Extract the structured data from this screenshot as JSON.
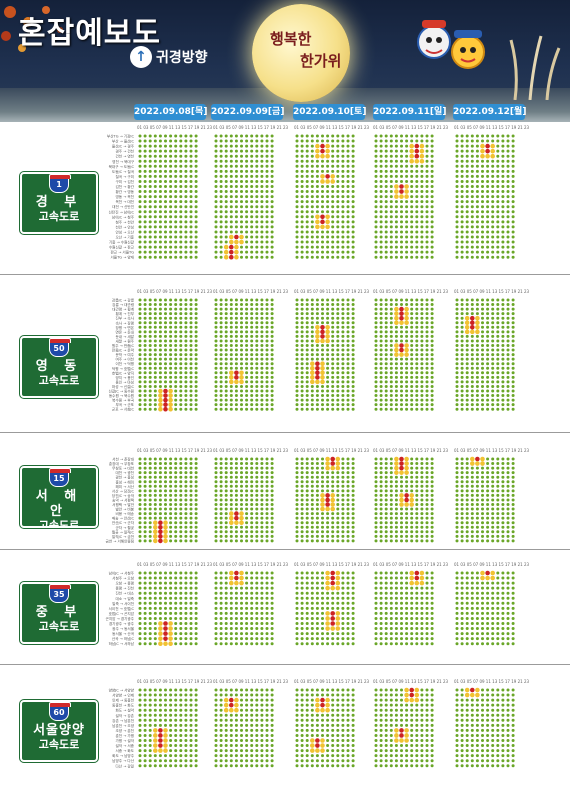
{
  "header": {
    "title": "혼잡예보도",
    "logo_text": "귀경방향",
    "greeting_line1": "행복한",
    "greeting_line2": "한가위"
  },
  "dates": [
    "2022.09.08[목]",
    "2022.09.09[금]",
    "2022.09.10[토]",
    "2022.09.11[일]",
    "2022.09.12[월]"
  ],
  "hour_axis_label": "01 03 05 07 09 11 13 15 17 19 21 23",
  "legend_colors": {
    "smooth": "#6aa628",
    "slow": "#f1c232",
    "congested": "#cc2222"
  },
  "highways": [
    {
      "route_number": "1",
      "name_line1": "경 부",
      "name_line2": "고속도로",
      "sections": [
        "부산TG → 기장IC",
        "부산 → 울산JC",
        "울산JC → 경주",
        "경주 → 건천",
        "건천 → 영천",
        "영천 → 북대구",
        "북대구 → 도동JC",
        "도동JC → 칠곡",
        "칠곡 → 구미",
        "구미 → 김천",
        "김천 → 황간",
        "황간 → 영동",
        "영동 → 옥천",
        "옥천 → 대전",
        "대전 → 신탄진",
        "신탄진 → 남이JC",
        "남이JC → 청주",
        "청주 → 천안",
        "천안 → 안성",
        "안성 → 오산",
        "오산 → 기흥",
        "기흥 → 수원신갈",
        "수원신갈 → 판교",
        "판교 → 서울TG",
        "서울TG → 양재"
      ],
      "grid": [
        "000000000000",
        "000000000000",
        "000000000000",
        "000000000000",
        "000000000000",
        "000000000000",
        "000000000000",
        "000000000000",
        "000000000000",
        "000000000000",
        "000000000000",
        "000000000000",
        "000000000000",
        "000000000000",
        "000000000000",
        "000000000000",
        "000000000000",
        "000000000000",
        "000000000000",
        "000000000000",
        "000000000000",
        "000000000000",
        "000000000000",
        "000000000000",
        "000000000000",
        "000000000000",
        "000000000000",
        "000000000000",
        "000000000000",
        "000000000000",
        "000000000000",
        "000000000000",
        "000001100000",
        "000001100000",
        "000001100000",
        "000000000000",
        "000000000000",
        "000000000000",
        "000000000000",
        "000000000000",
        "000000000000",
        "000000000000",
        "000000000000",
        "000000000000",
        "000000000000",
        "000000000000",
        "000000000000",
        "000000000000",
        "000000000000",
        "000000000000"
      ]
    },
    {
      "route_number": "50",
      "name_line1": "영 동",
      "name_line2": "고속도로",
      "sections": [
        "강릉JC → 강릉",
        "강릉 → 대관령",
        "대관령 → 횡계",
        "횡계 → 진부",
        "진부 → 속사",
        "속사 → 장평",
        "장평 → 면온",
        "면온 → 둔내",
        "둔내 → 새말",
        "새말 → 원주",
        "원주 → 만종JC",
        "만종JC → 문막",
        "문막 → 여주",
        "여주 → 이천",
        "이천 → 덕평",
        "덕평 → 호법JC",
        "호법JC → 양지",
        "양지 → 용인",
        "용인 → 마성",
        "마성 → 신갈JC",
        "신갈JC → 동수원",
        "동수원 → 북수원",
        "북수원 → 부곡",
        "부곡 → 군포",
        "군포 → 서창JC"
      ],
      "grid": []
    },
    {
      "route_number": "15",
      "name_line1": "서 해 안",
      "name_line2": "고속도로",
      "sections": [
        "서천 → 춘장대",
        "춘장대 → 무창포",
        "무창포 → 대천",
        "대천 → 광천",
        "광천 → 홍성",
        "홍성 → 해미",
        "해미 → 서산",
        "서산 → 당진JC",
        "당진JC → 송악",
        "송악 → 서평택",
        "서평택 → 발안",
        "발안 → 비봉",
        "비봉 → 매송",
        "매송 → 안산JC",
        "안산JC → 군자",
        "군자 → 월곶",
        "월곶 → 일직JC",
        "일직JC → 금천",
        "금천 → 서해안종점"
      ],
      "grid": []
    },
    {
      "route_number": "35",
      "name_line1": "중 부",
      "name_line2": "고속도로",
      "sections": [
        "남이JC → 서청주",
        "서청주 → 오창",
        "오창 → 증평",
        "증평 → 진천",
        "진천 → 대소",
        "대소 → 일죽",
        "일죽 → 서이천",
        "서이천 → 호법JC",
        "호법JC → 곤지암",
        "곤지암 → 경기광주",
        "경기광주 → 광주",
        "광주 → 동서울",
        "동서울 → 산곡",
        "산곡 → 하남JC",
        "하남JC → 서하남"
      ],
      "grid": []
    },
    {
      "route_number": "60",
      "name_line1": "서울양양",
      "name_line2": "고속도로",
      "sections": [
        "양양JC → 서양양",
        "서양양 → 인제",
        "인제 → 동홍천",
        "동홍천 → 화도",
        "화도 → 설악",
        "설악 → 강촌",
        "강촌 → 남춘천",
        "남춘천 → 조양",
        "조양 → 춘천",
        "춘천 → 가평",
        "가평 → 설악",
        "설악 → 서종",
        "서종 → 화도",
        "화도 → 남양주",
        "남양주 → 다산",
        "다산 → 강일"
      ],
      "grid": []
    }
  ]
}
